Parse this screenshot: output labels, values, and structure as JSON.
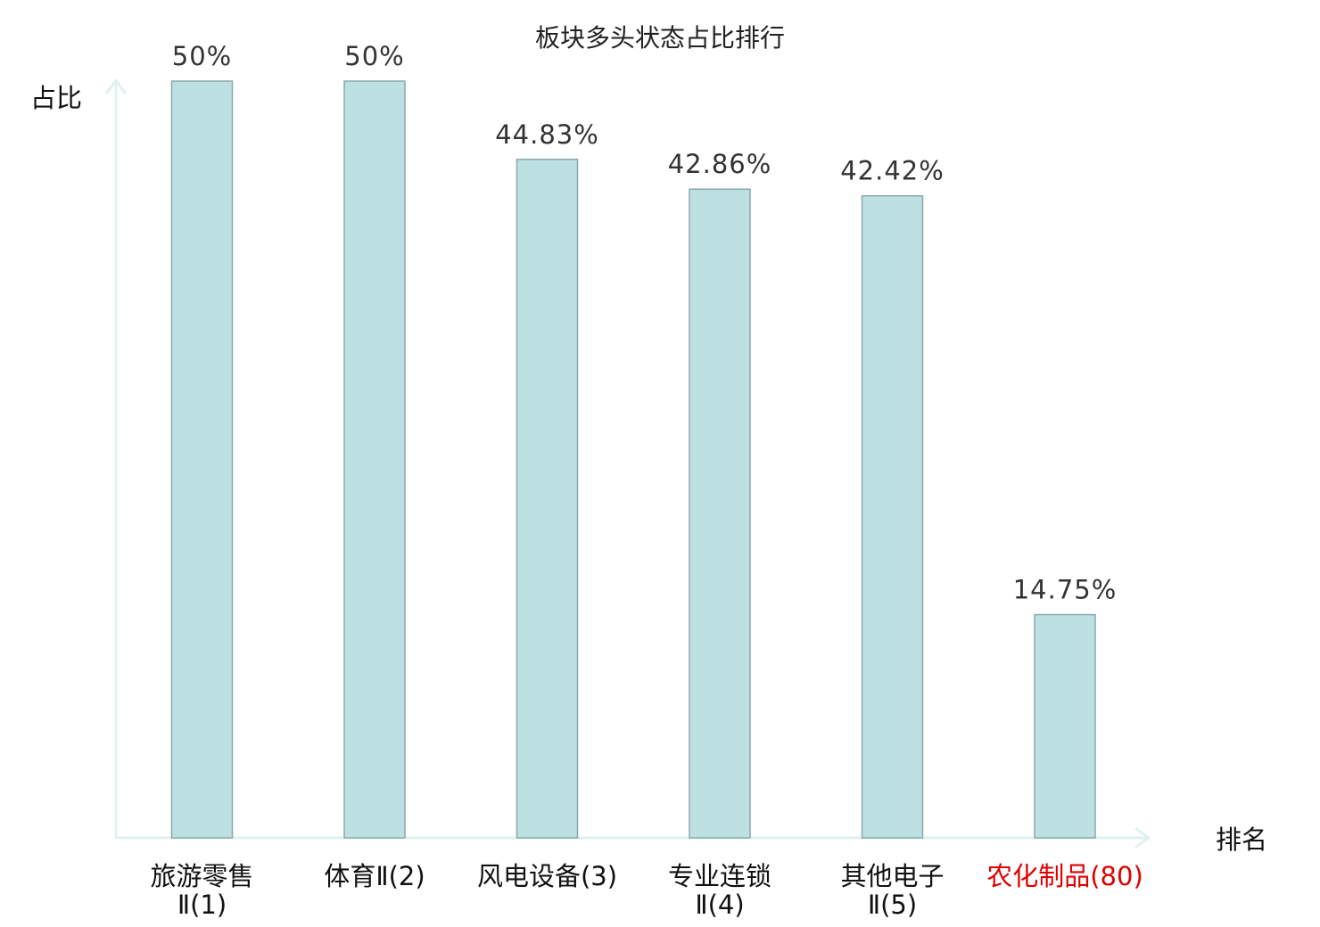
{
  "chart_data": {
    "type": "bar",
    "title": "板块多头状态占比排行",
    "ylabel": "占比",
    "xlabel": "排名",
    "categories": [
      [
        "旅游零售",
        "Ⅱ(1)"
      ],
      [
        "体育Ⅱ(2)"
      ],
      [
        "风电设备(3)"
      ],
      [
        "专业连锁",
        "Ⅱ(4)"
      ],
      [
        "其他电子",
        "Ⅱ(5)"
      ],
      [
        "农化制品(80)"
      ]
    ],
    "values": [
      50,
      50,
      44.83,
      42.86,
      42.42,
      14.75
    ],
    "value_labels": [
      "50%",
      "50%",
      "44.83%",
      "42.86%",
      "42.42%",
      "14.75%"
    ],
    "highlight_index": 5,
    "ylim": [
      0,
      50
    ],
    "grid": false,
    "colors": {
      "bar_fill": "#bde0e3",
      "bar_stroke": "#8aa9ac",
      "axis": "#e0f2ef",
      "highlight_text": "#e00000",
      "text": "#111111"
    }
  }
}
